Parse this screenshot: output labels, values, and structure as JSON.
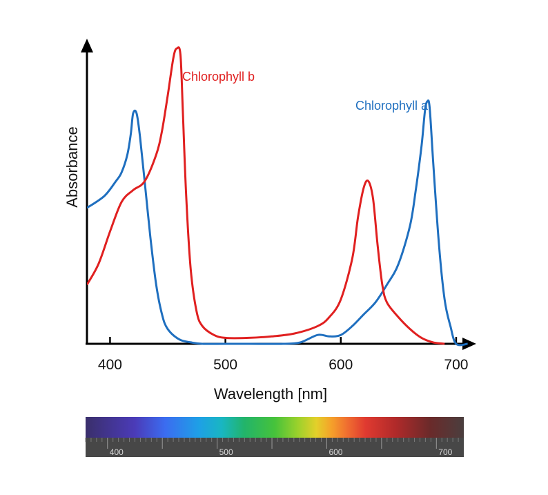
{
  "chart_data": {
    "type": "line",
    "xlabel": "Wavelength [nm]",
    "ylabel": "Absorbance",
    "xlim": [
      380,
      715
    ],
    "ylim": [
      0,
      1
    ],
    "x_ticks": [
      400,
      500,
      600,
      700
    ],
    "grid": false,
    "legend": "inline labels near peaks",
    "series": [
      {
        "name": "Chlorophyll a",
        "color": "#1f6fbf",
        "x": [
          380,
          395,
          405,
          410,
          415,
          418,
          420,
          423,
          426,
          430,
          435,
          440,
          445,
          450,
          460,
          470,
          480,
          500,
          520,
          550,
          565,
          580,
          590,
          600,
          610,
          620,
          630,
          640,
          650,
          660,
          665,
          670,
          673,
          675,
          677,
          680,
          685,
          690,
          695,
          700,
          710
        ],
        "y": [
          0.46,
          0.5,
          0.55,
          0.58,
          0.64,
          0.71,
          0.78,
          0.78,
          0.7,
          0.55,
          0.36,
          0.2,
          0.1,
          0.05,
          0.015,
          0.005,
          0.0,
          0.0,
          0.0,
          0.0,
          0.005,
          0.03,
          0.025,
          0.03,
          0.06,
          0.1,
          0.14,
          0.2,
          0.27,
          0.4,
          0.52,
          0.67,
          0.79,
          0.82,
          0.8,
          0.62,
          0.34,
          0.15,
          0.06,
          0.0,
          0.0
        ]
      },
      {
        "name": "Chlorophyll b",
        "color": "#e02020",
        "x": [
          380,
          390,
          400,
          410,
          420,
          430,
          440,
          445,
          450,
          455,
          458,
          461,
          463,
          466,
          470,
          475,
          480,
          490,
          500,
          520,
          540,
          560,
          580,
          590,
          600,
          610,
          615,
          620,
          624,
          628,
          632,
          636,
          640,
          650,
          660,
          670,
          680,
          690
        ],
        "y": [
          0.2,
          0.27,
          0.38,
          0.48,
          0.52,
          0.55,
          0.64,
          0.72,
          0.84,
          0.97,
          1.0,
          0.98,
          0.8,
          0.5,
          0.25,
          0.11,
          0.06,
          0.03,
          0.02,
          0.02,
          0.025,
          0.035,
          0.06,
          0.09,
          0.15,
          0.29,
          0.43,
          0.53,
          0.55,
          0.49,
          0.33,
          0.2,
          0.14,
          0.09,
          0.05,
          0.02,
          0.005,
          0.0
        ]
      }
    ],
    "spectrum_bar": {
      "range_nm": [
        380,
        725
      ],
      "labels": [
        "400",
        "500",
        "600",
        "700"
      ]
    }
  }
}
